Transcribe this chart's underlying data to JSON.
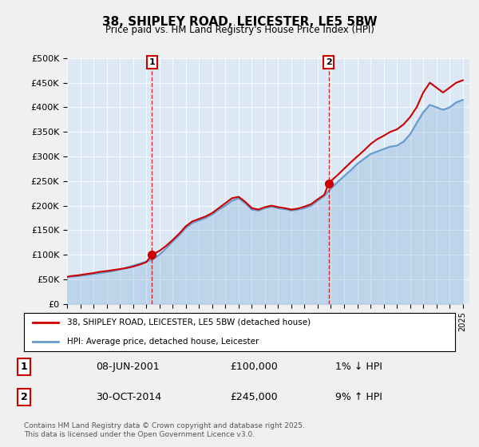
{
  "title": "38, SHIPLEY ROAD, LEICESTER, LE5 5BW",
  "subtitle": "Price paid vs. HM Land Registry's House Price Index (HPI)",
  "ylabel_ticks": [
    "£0",
    "£50K",
    "£100K",
    "£150K",
    "£200K",
    "£250K",
    "£300K",
    "£350K",
    "£400K",
    "£450K",
    "£500K"
  ],
  "ytick_values": [
    0,
    50000,
    100000,
    150000,
    200000,
    250000,
    300000,
    350000,
    400000,
    450000,
    500000
  ],
  "ylim": [
    0,
    500000
  ],
  "xlim_start": 1995,
  "xlim_end": 2025.5,
  "background_color": "#dce9f5",
  "plot_bg_color": "#dce9f5",
  "fig_bg_color": "#f0f0f0",
  "red_color": "#cc0000",
  "blue_color": "#6699cc",
  "marker1_date": 2001.44,
  "marker1_price": 100000,
  "marker2_date": 2014.83,
  "marker2_price": 245000,
  "legend_label1": "38, SHIPLEY ROAD, LEICESTER, LE5 5BW (detached house)",
  "legend_label2": "HPI: Average price, detached house, Leicester",
  "table_row1": [
    "1",
    "08-JUN-2001",
    "£100,000",
    "1% ↓ HPI"
  ],
  "table_row2": [
    "2",
    "30-OCT-2014",
    "£245,000",
    "9% ↑ HPI"
  ],
  "footer": "Contains HM Land Registry data © Crown copyright and database right 2025.\nThis data is licensed under the Open Government Licence v3.0.",
  "hpi_data": [
    [
      1995.0,
      55000
    ],
    [
      1995.5,
      56000
    ],
    [
      1996.0,
      57500
    ],
    [
      1996.5,
      59000
    ],
    [
      1997.0,
      61000
    ],
    [
      1997.5,
      63000
    ],
    [
      1998.0,
      65000
    ],
    [
      1998.5,
      67000
    ],
    [
      1999.0,
      70000
    ],
    [
      1999.5,
      74000
    ],
    [
      2000.0,
      78000
    ],
    [
      2000.5,
      82000
    ],
    [
      2001.0,
      86000
    ],
    [
      2001.5,
      91000
    ],
    [
      2002.0,
      100000
    ],
    [
      2002.5,
      113000
    ],
    [
      2003.0,
      127000
    ],
    [
      2003.5,
      140000
    ],
    [
      2004.0,
      155000
    ],
    [
      2004.5,
      165000
    ],
    [
      2005.0,
      170000
    ],
    [
      2005.5,
      175000
    ],
    [
      2006.0,
      182000
    ],
    [
      2006.5,
      192000
    ],
    [
      2007.0,
      200000
    ],
    [
      2007.5,
      210000
    ],
    [
      2008.0,
      215000
    ],
    [
      2008.5,
      205000
    ],
    [
      2009.0,
      192000
    ],
    [
      2009.5,
      190000
    ],
    [
      2010.0,
      195000
    ],
    [
      2010.5,
      198000
    ],
    [
      2011.0,
      195000
    ],
    [
      2011.5,
      193000
    ],
    [
      2012.0,
      190000
    ],
    [
      2012.5,
      192000
    ],
    [
      2013.0,
      195000
    ],
    [
      2013.5,
      200000
    ],
    [
      2014.0,
      210000
    ],
    [
      2014.5,
      220000
    ],
    [
      2015.0,
      235000
    ],
    [
      2015.5,
      248000
    ],
    [
      2016.0,
      260000
    ],
    [
      2016.5,
      272000
    ],
    [
      2017.0,
      285000
    ],
    [
      2017.5,
      295000
    ],
    [
      2018.0,
      305000
    ],
    [
      2018.5,
      310000
    ],
    [
      2019.0,
      315000
    ],
    [
      2019.5,
      320000
    ],
    [
      2020.0,
      322000
    ],
    [
      2020.5,
      330000
    ],
    [
      2021.0,
      345000
    ],
    [
      2021.5,
      368000
    ],
    [
      2022.0,
      390000
    ],
    [
      2022.5,
      405000
    ],
    [
      2023.0,
      400000
    ],
    [
      2023.5,
      395000
    ],
    [
      2024.0,
      400000
    ],
    [
      2024.5,
      410000
    ],
    [
      2025.0,
      415000
    ]
  ],
  "price_data": [
    [
      1995.0,
      55000
    ],
    [
      1995.25,
      56500
    ],
    [
      1995.5,
      57500
    ],
    [
      1995.75,
      58000
    ],
    [
      1996.0,
      59000
    ],
    [
      1996.5,
      61000
    ],
    [
      1997.0,
      63000
    ],
    [
      1997.5,
      65500
    ],
    [
      1998.0,
      67000
    ],
    [
      1998.5,
      69000
    ],
    [
      1999.0,
      71000
    ],
    [
      1999.5,
      73000
    ],
    [
      2000.0,
      76000
    ],
    [
      2000.5,
      80000
    ],
    [
      2001.0,
      85000
    ],
    [
      2001.44,
      100000
    ],
    [
      2002.0,
      108000
    ],
    [
      2002.5,
      118000
    ],
    [
      2003.0,
      130000
    ],
    [
      2003.5,
      143000
    ],
    [
      2004.0,
      158000
    ],
    [
      2004.5,
      168000
    ],
    [
      2005.0,
      173000
    ],
    [
      2005.5,
      178000
    ],
    [
      2006.0,
      185000
    ],
    [
      2006.5,
      195000
    ],
    [
      2007.0,
      205000
    ],
    [
      2007.5,
      215000
    ],
    [
      2008.0,
      218000
    ],
    [
      2008.5,
      208000
    ],
    [
      2009.0,
      195000
    ],
    [
      2009.5,
      192000
    ],
    [
      2010.0,
      197000
    ],
    [
      2010.5,
      200000
    ],
    [
      2011.0,
      197000
    ],
    [
      2011.5,
      195000
    ],
    [
      2012.0,
      192000
    ],
    [
      2012.5,
      194000
    ],
    [
      2013.0,
      198000
    ],
    [
      2013.5,
      203000
    ],
    [
      2014.0,
      213000
    ],
    [
      2014.5,
      222000
    ],
    [
      2014.83,
      245000
    ],
    [
      2015.0,
      250000
    ],
    [
      2015.5,
      262000
    ],
    [
      2016.0,
      275000
    ],
    [
      2016.5,
      288000
    ],
    [
      2017.0,
      300000
    ],
    [
      2017.5,
      312000
    ],
    [
      2018.0,
      325000
    ],
    [
      2018.5,
      335000
    ],
    [
      2019.0,
      342000
    ],
    [
      2019.5,
      350000
    ],
    [
      2020.0,
      355000
    ],
    [
      2020.5,
      365000
    ],
    [
      2021.0,
      380000
    ],
    [
      2021.5,
      400000
    ],
    [
      2022.0,
      430000
    ],
    [
      2022.5,
      450000
    ],
    [
      2023.0,
      440000
    ],
    [
      2023.5,
      430000
    ],
    [
      2024.0,
      440000
    ],
    [
      2024.5,
      450000
    ],
    [
      2025.0,
      455000
    ]
  ]
}
